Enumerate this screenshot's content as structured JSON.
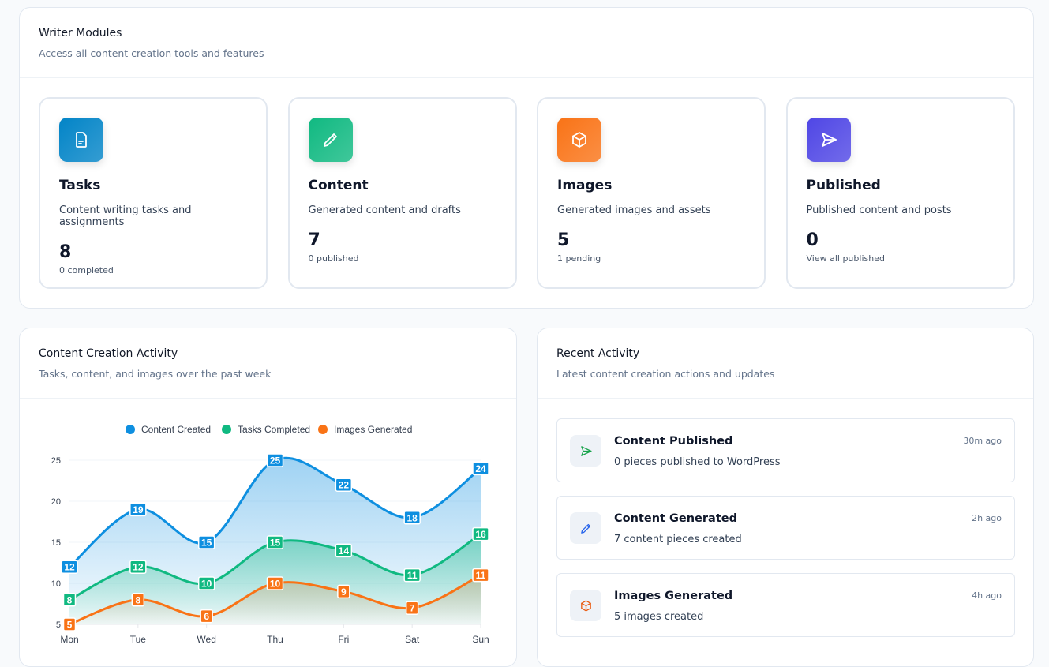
{
  "modules": {
    "title": "Writer Modules",
    "subtitle": "Access all content creation tools and features",
    "items": [
      {
        "title": "Tasks",
        "desc": "Content writing tasks and assignments",
        "count": "8",
        "sub": "0 completed",
        "icon": "document-icon",
        "color": "#0284c7"
      },
      {
        "title": "Content",
        "desc": "Generated content and drafts",
        "count": "7",
        "sub": "0 published",
        "icon": "pencil-icon",
        "color": "#10b981"
      },
      {
        "title": "Images",
        "desc": "Generated images and assets",
        "count": "5",
        "sub": "1 pending",
        "icon": "cube-icon",
        "color": "#f97316"
      },
      {
        "title": "Published",
        "desc": "Published content and posts",
        "count": "0",
        "sub": "View all published",
        "icon": "send-icon",
        "color": "#4f46e5"
      }
    ]
  },
  "chart_panel": {
    "title": "Content Creation Activity",
    "subtitle": "Tasks, content, and images over the past week"
  },
  "chart_data": {
    "type": "area",
    "categories": [
      "Mon",
      "Tue",
      "Wed",
      "Thu",
      "Fri",
      "Sat",
      "Sun"
    ],
    "ylim": [
      5,
      25
    ],
    "yticks": [
      5,
      10,
      15,
      20,
      25
    ],
    "grid": true,
    "legend": "top",
    "series": [
      {
        "name": "Content Created",
        "color": "#0e8fe0",
        "values": [
          12,
          19,
          15,
          25,
          22,
          18,
          24
        ]
      },
      {
        "name": "Tasks Completed",
        "color": "#10b981",
        "values": [
          8,
          12,
          10,
          15,
          14,
          11,
          16
        ]
      },
      {
        "name": "Images Generated",
        "color": "#f97316",
        "values": [
          5,
          8,
          6,
          10,
          9,
          7,
          11
        ]
      }
    ]
  },
  "activity": {
    "title": "Recent Activity",
    "subtitle": "Latest content creation actions and updates",
    "items": [
      {
        "title": "Content Published",
        "desc": "0 pieces published to WordPress",
        "time": "30m ago",
        "icon": "send-icon",
        "color": "#16a34a"
      },
      {
        "title": "Content Generated",
        "desc": "7 content pieces created",
        "time": "2h ago",
        "icon": "pencil-icon",
        "color": "#2563eb"
      },
      {
        "title": "Images Generated",
        "desc": "5 images created",
        "time": "4h ago",
        "icon": "cube-icon",
        "color": "#ea580c"
      }
    ]
  }
}
